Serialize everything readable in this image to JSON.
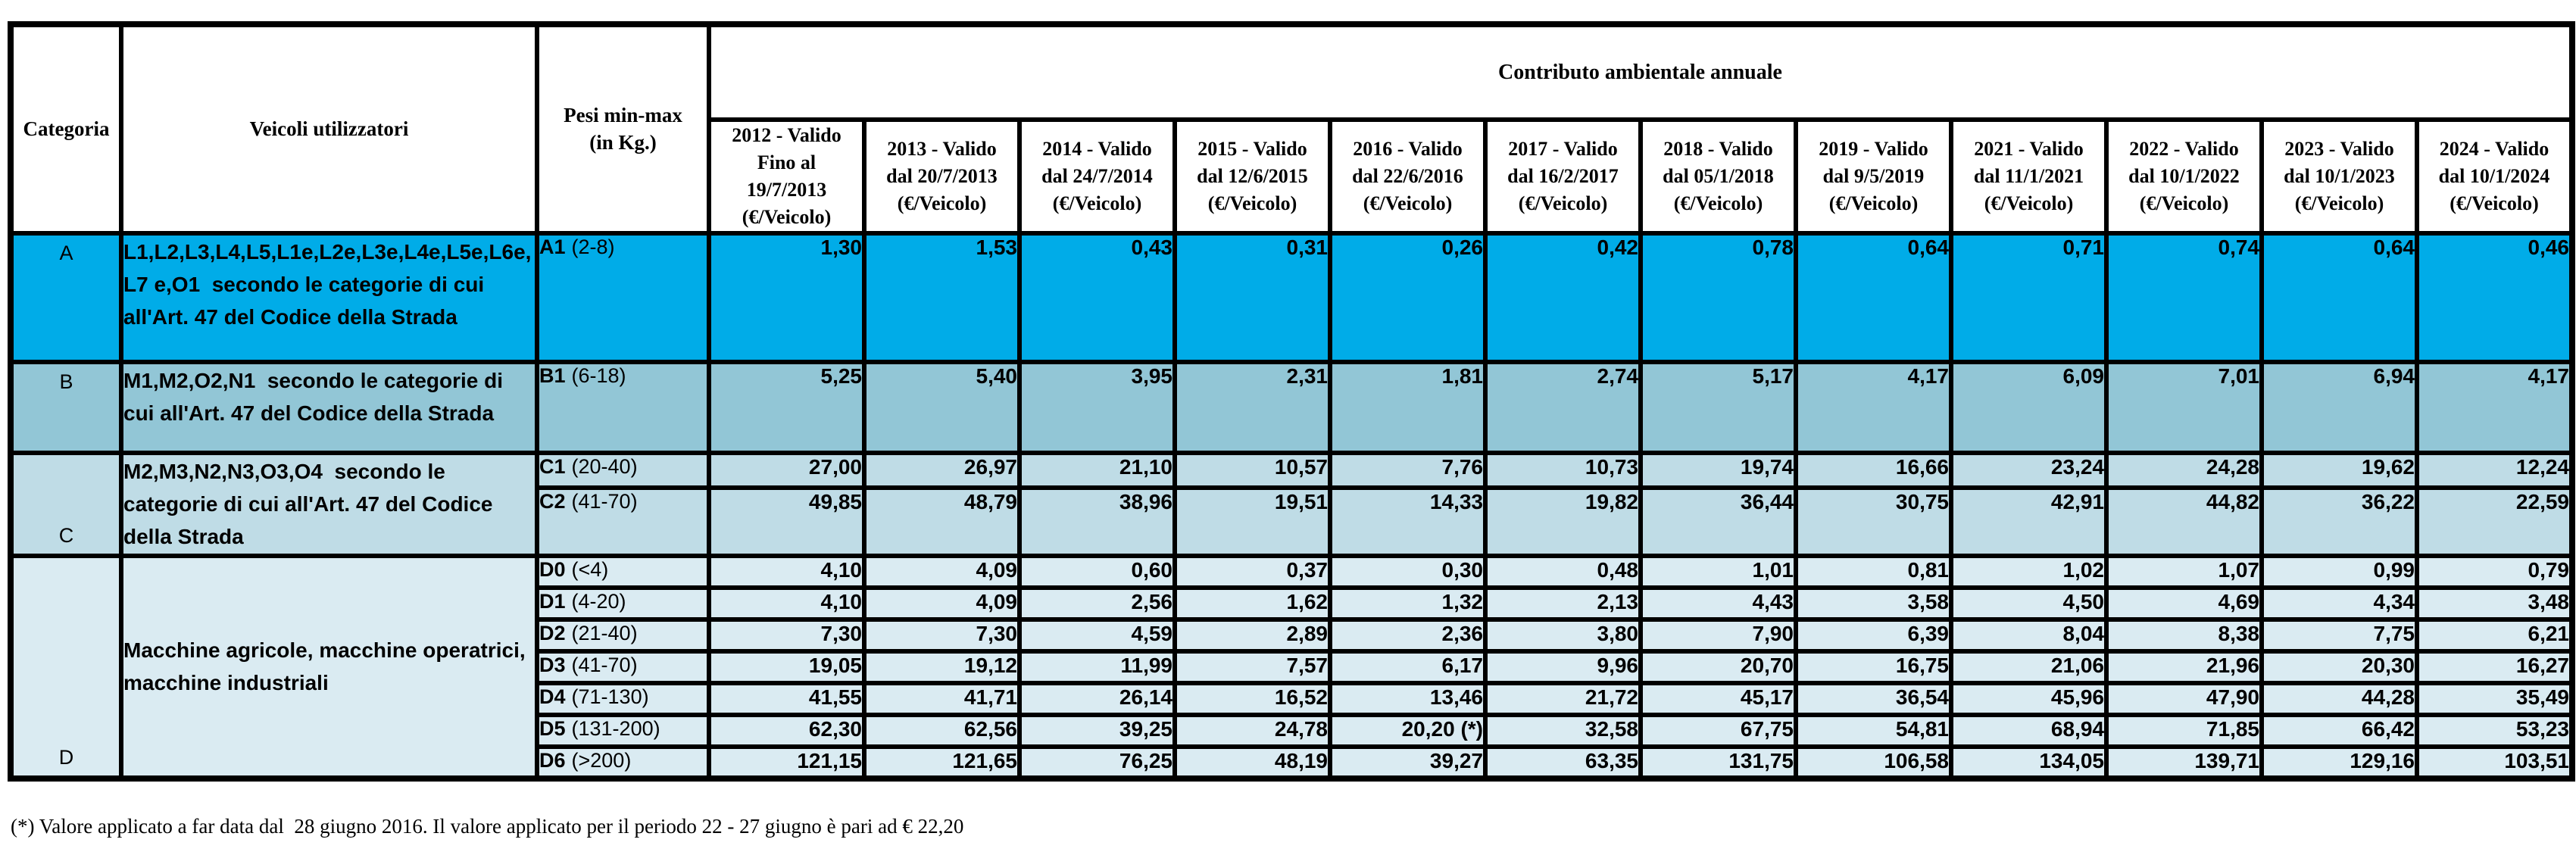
{
  "table": {
    "title": "Contributo ambientale annuale",
    "columns": {
      "categoria": "Categoria",
      "veicoli": "Veicoli utilizzatori",
      "pesi": [
        "Pesi min-max",
        "(in Kg.)"
      ]
    },
    "year_headers": [
      [
        "2012 - Valido",
        "Fino al",
        "19/7/2013",
        "(€/Veicolo)"
      ],
      [
        "2013 - Valido",
        "dal 20/7/2013",
        "(€/Veicolo)"
      ],
      [
        "2014 - Valido",
        "dal 24/7/2014",
        "(€/Veicolo)"
      ],
      [
        "2015 - Valido",
        "dal 12/6/2015",
        "(€/Veicolo)"
      ],
      [
        "2016 - Valido",
        "dal 22/6/2016",
        "(€/Veicolo)"
      ],
      [
        "2017 - Valido",
        "dal 16/2/2017",
        "(€/Veicolo)"
      ],
      [
        "2018 - Valido",
        "dal 05/1/2018",
        "(€/Veicolo)"
      ],
      [
        "2019 - Valido",
        "dal 9/5/2019",
        "(€/Veicolo)"
      ],
      [
        "2021 - Valido",
        "dal 11/1/2021",
        "(€/Veicolo)"
      ],
      [
        "2022 - Valido",
        "dal 10/1/2022",
        "(€/Veicolo)"
      ],
      [
        "2023 - Valido",
        "dal 10/1/2023",
        "(€/Veicolo)"
      ],
      [
        "2024 - Valido",
        "dal 10/1/2024",
        "(€/Veicolo)"
      ]
    ],
    "groups": [
      {
        "categoria": "A",
        "color": "#00ACE8",
        "veicoli": "L1,L2,L3,L4,L5,L1e,L2e,L3e,L4e,L5e,L6e,L7 e,O1  secondo le categorie di cui all'Art. 47 del Codice della Strada",
        "rows": [
          {
            "peso_code": "A1",
            "peso_range": "(2-8)",
            "values": [
              "1,30",
              "1,53",
              "0,43",
              "0,31",
              "0,26",
              "0,42",
              "0,78",
              "0,64",
              "0,71",
              "0,74",
              "0,64",
              "0,46"
            ]
          }
        ]
      },
      {
        "categoria": "B",
        "color": "#92C6D6",
        "veicoli": "M1,M2,O2,N1  secondo le categorie di cui all'Art. 47 del Codice della Strada",
        "rows": [
          {
            "peso_code": "B1",
            "peso_range": "(6-18)",
            "values": [
              "5,25",
              "5,40",
              "3,95",
              "2,31",
              "1,81",
              "2,74",
              "5,17",
              "4,17",
              "6,09",
              "7,01",
              "6,94",
              "4,17"
            ]
          }
        ]
      },
      {
        "categoria": "C",
        "color": "#BFDCE6",
        "veicoli": "M2,M3,N2,N3,O3,O4  secondo le categorie di cui all'Art. 47 del Codice della Strada",
        "rows": [
          {
            "peso_code": "C1",
            "peso_range": "(20-40)",
            "values": [
              "27,00",
              "26,97",
              "21,10",
              "10,57",
              "7,76",
              "10,73",
              "19,74",
              "16,66",
              "23,24",
              "24,28",
              "19,62",
              "12,24"
            ]
          },
          {
            "peso_code": "C2",
            "peso_range": "(41-70)",
            "values": [
              "49,85",
              "48,79",
              "38,96",
              "19,51",
              "14,33",
              "19,82",
              "36,44",
              "30,75",
              "42,91",
              "44,82",
              "36,22",
              "22,59"
            ]
          }
        ]
      },
      {
        "categoria": "D",
        "color": "#DAEBF2",
        "veicoli": "Macchine agricole, macchine operatrici, macchine industriali",
        "rows": [
          {
            "peso_code": "D0",
            "peso_range": "(<4)",
            "values": [
              "4,10",
              "4,09",
              "0,60",
              "0,37",
              "0,30",
              "0,48",
              "1,01",
              "0,81",
              "1,02",
              "1,07",
              "0,99",
              "0,79"
            ]
          },
          {
            "peso_code": "D1",
            "peso_range": "(4-20)",
            "values": [
              "4,10",
              "4,09",
              "2,56",
              "1,62",
              "1,32",
              "2,13",
              "4,43",
              "3,58",
              "4,50",
              "4,69",
              "4,34",
              "3,48"
            ]
          },
          {
            "peso_code": "D2",
            "peso_range": "(21-40)",
            "values": [
              "7,30",
              "7,30",
              "4,59",
              "2,89",
              "2,36",
              "3,80",
              "7,90",
              "6,39",
              "8,04",
              "8,38",
              "7,75",
              "6,21"
            ]
          },
          {
            "peso_code": "D3",
            "peso_range": "(41-70)",
            "values": [
              "19,05",
              "19,12",
              "11,99",
              "7,57",
              "6,17",
              "9,96",
              "20,70",
              "16,75",
              "21,06",
              "21,96",
              "20,30",
              "16,27"
            ]
          },
          {
            "peso_code": "D4",
            "peso_range": "(71-130)",
            "values": [
              "41,55",
              "41,71",
              "26,14",
              "16,52",
              "13,46",
              "21,72",
              "45,17",
              "36,54",
              "45,96",
              "47,90",
              "44,28",
              "35,49"
            ]
          },
          {
            "peso_code": "D5",
            "peso_range": "(131-200)",
            "values": [
              "62,30",
              "62,56",
              "39,25",
              "24,78",
              "20,20 (*)",
              "32,58",
              "67,75",
              "54,81",
              "68,94",
              "71,85",
              "66,42",
              "53,23"
            ]
          },
          {
            "peso_code": "D6",
            "peso_range": "(>200)",
            "values": [
              "121,15",
              "121,65",
              "76,25",
              "48,19",
              "39,27",
              "63,35",
              "131,75",
              "106,58",
              "134,05",
              "139,71",
              "129,16",
              "103,51"
            ]
          }
        ]
      }
    ]
  },
  "footnote": "(*) Valore applicato a far data dal  28 giugno 2016. Il valore applicato per il periodo 22 - 27 giugno è pari ad € 22,20"
}
